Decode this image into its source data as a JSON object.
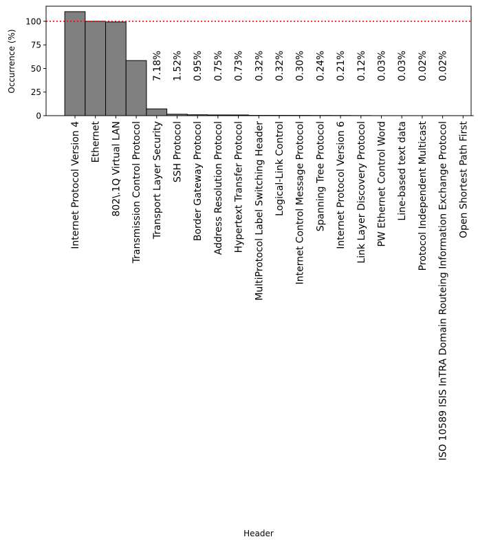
{
  "chart_data": {
    "type": "bar",
    "title": "",
    "xlabel": "Header",
    "ylabel": "Occurrence (%)",
    "ylim": [
      0,
      116
    ],
    "yticks": [
      0,
      25,
      50,
      75,
      100
    ],
    "reference_line": {
      "y": 100,
      "color": "#ff0000",
      "style": "dotted"
    },
    "bar_color": "#808080",
    "edge_color": "#000000",
    "grid": false,
    "categories": [
      "Internet Protocol Version 4",
      "Ethernet",
      "802\\.1Q Virtual LAN",
      "Transmission Control Protocol",
      "Transport Layer Security",
      "SSH Protocol",
      "Border Gateway Protocol",
      "Address Resolution Protocol",
      "Hypertext Transfer Protocol",
      "MultiProtocol Label Switching Header",
      "Logical-Link Control",
      "Internet Control Message Protocol",
      "Spanning Tree Protocol",
      "Internet Protocol Version 6",
      "Link Layer Discovery Protocol",
      "PW Ethernet Control Word",
      "Line-based text data",
      "Protocol Independent Multicast",
      "ISO 10589 ISIS InTRA Domain Routeing Information Exchange Protocol",
      "Open Shortest Path First"
    ],
    "values": [
      110.2,
      100,
      99.3,
      58.4,
      7.18,
      1.52,
      0.95,
      0.75,
      0.73,
      0.32,
      0.32,
      0.3,
      0.24,
      0.21,
      0.12,
      0.03,
      0.03,
      0.02,
      0.02,
      0.01
    ],
    "data_labels": [
      "",
      "",
      "",
      "",
      "7.18%",
      "1.52%",
      "0.95%",
      "0.75%",
      "0.73%",
      "0.32%",
      "0.32%",
      "0.30%",
      "0.24%",
      "0.21%",
      "0.12%",
      "0.03%",
      "0.03%",
      "0.02%",
      "0.02%",
      ""
    ]
  }
}
